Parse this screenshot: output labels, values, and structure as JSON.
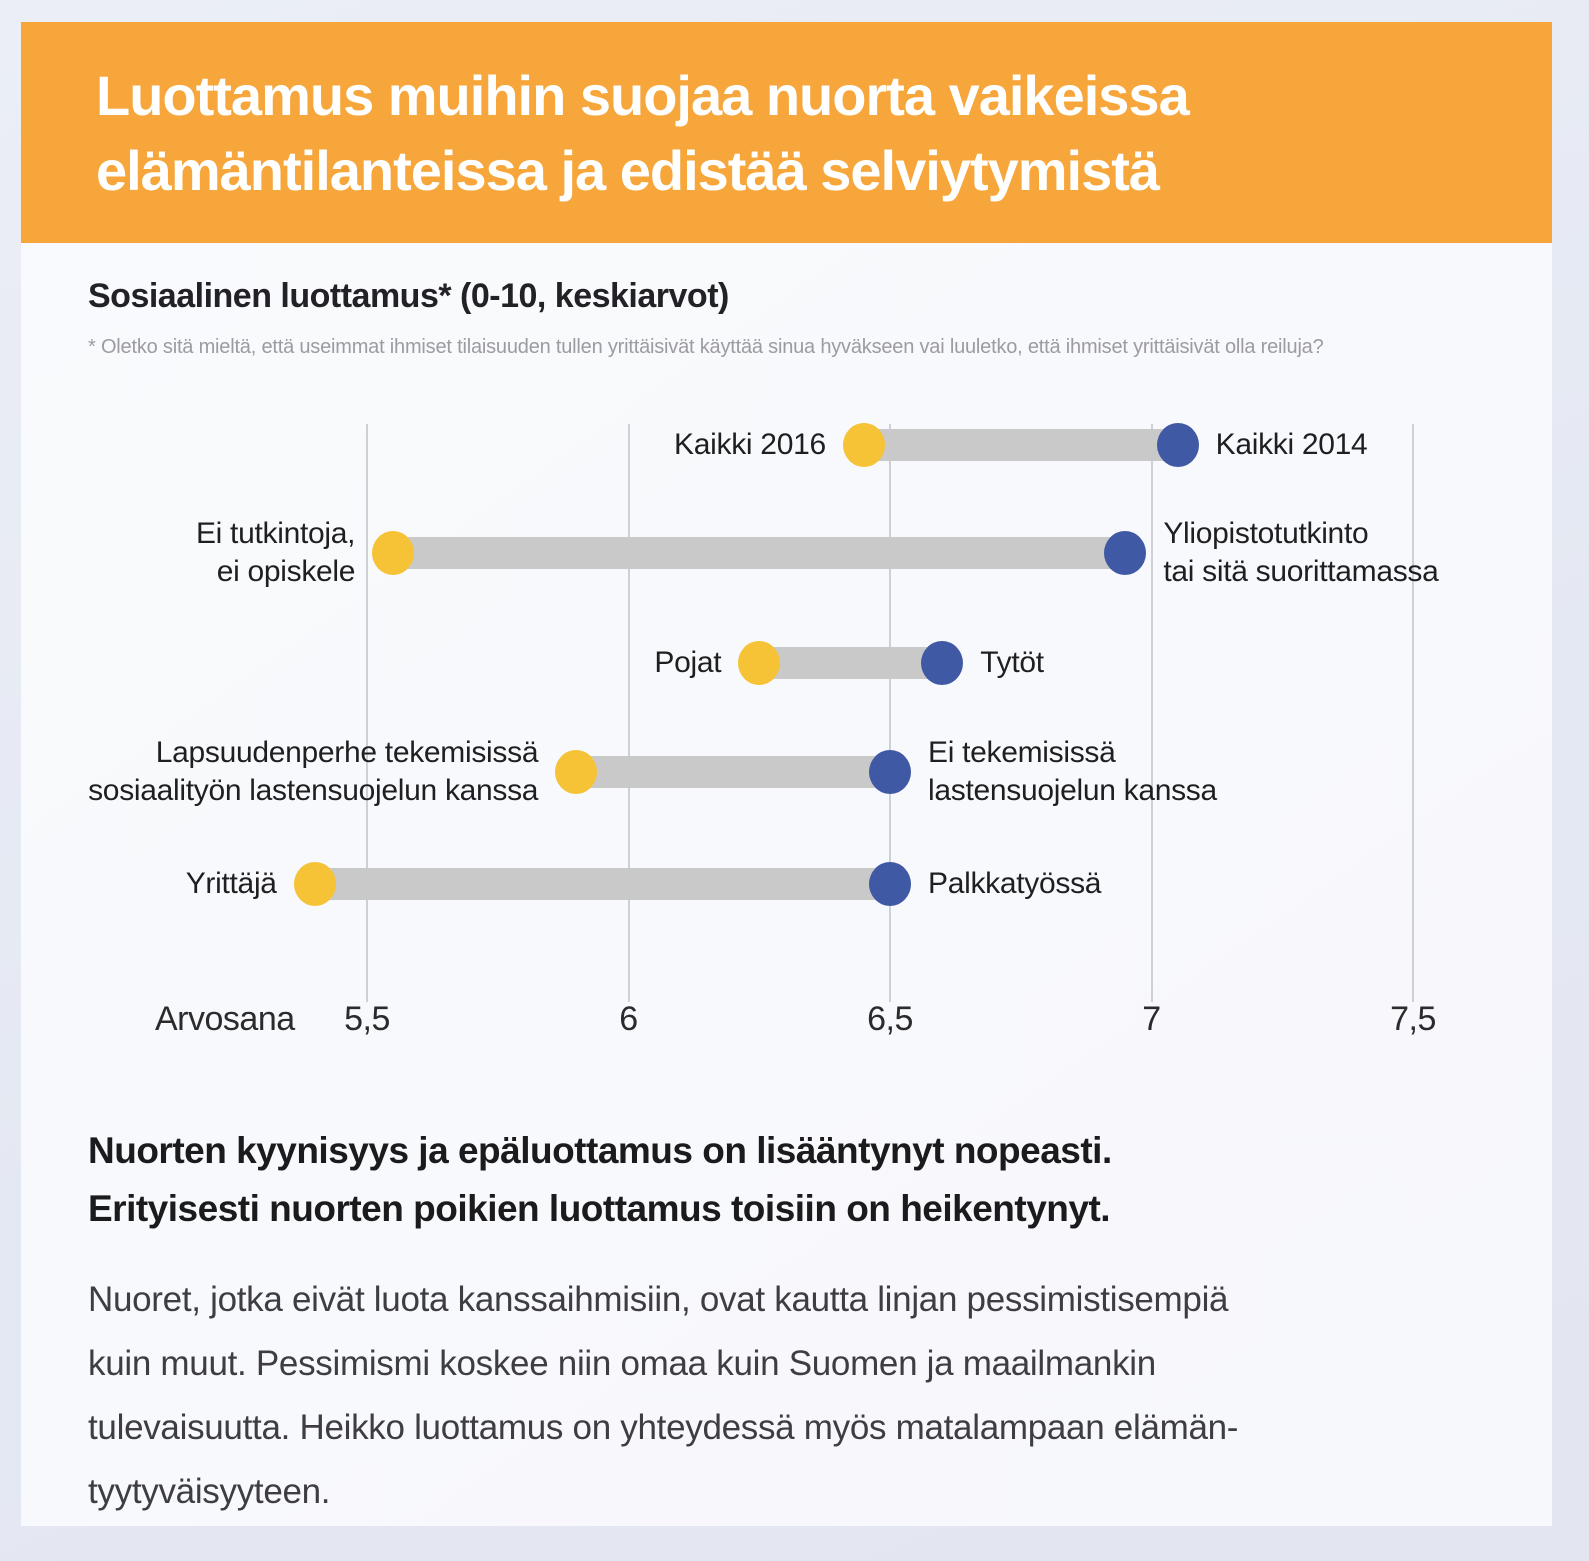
{
  "header": {
    "title": "Luottamus muihin suojaa nuorta vaikeissa\nelämäntilanteissa ja edistää selviytymistä",
    "banner_color": "#f6a63a"
  },
  "chart_data": {
    "type": "dumbbell",
    "title": "Sosiaalinen luottamus* (0-10, keskiarvot)",
    "footnote": "* Oletko sitä mieltä, että useimmat ihmiset tilaisuuden tullen yrittäisivät käyttää sinua hyväkseen vai luuletko, että ihmiset yrittäisivät olla reiluja?",
    "axis_label": "Arvosana",
    "xlim": [
      5.5,
      7.5
    ],
    "grid": true,
    "x_ticks": [
      {
        "label": "5,5",
        "value": 5.5
      },
      {
        "label": "6",
        "value": 6.0
      },
      {
        "label": "6,5",
        "value": 6.5
      },
      {
        "label": "7",
        "value": 7.0
      },
      {
        "label": "7,5",
        "value": 7.5
      }
    ],
    "rows": [
      {
        "left_label": "Kaikki 2016",
        "left_value": 6.45,
        "right_label": "Kaikki 2014",
        "right_value": 7.05
      },
      {
        "left_label": "Ei tutkintoja,\nei opiskele",
        "left_value": 5.55,
        "right_label": "Yliopistotutkinto\ntai sitä suorittamassa",
        "right_value": 6.95
      },
      {
        "left_label": "Pojat",
        "left_value": 6.25,
        "right_label": "Tytöt",
        "right_value": 6.6
      },
      {
        "left_label": "Lapsuudenperhe tekemisissä\nsosiaalityön lastensuojelun kanssa",
        "left_value": 5.9,
        "right_label": "Ei tekemisissä\nlastensuojelun kanssa",
        "right_value": 6.5
      },
      {
        "left_label": "Yrittäjä",
        "left_value": 5.4,
        "right_label": "Palkkatyössä",
        "right_value": 6.5
      }
    ],
    "colors": {
      "left_dot": "#f6c336",
      "right_dot": "#4059a5",
      "bar": "#c9c9c9",
      "gridline": "#cdd0d6"
    }
  },
  "summary": {
    "headline": "Nuorten kyynisyys ja epäluottamus on lisääntynyt nopeasti.\nErityisesti nuorten poikien luottamus toisiin on heikentynyt.",
    "body": "Nuoret, jotka eivät luota kanssaihmisiin, ovat kautta linjan pessimistisempiä\nkuin muut. Pessimismi koskee niin omaa kuin Suomen ja maailmankin\ntulevaisuutta. Heikko luottamus on yhteydessä myös matalampaan elämän-\ntyytyväisyyteen."
  }
}
